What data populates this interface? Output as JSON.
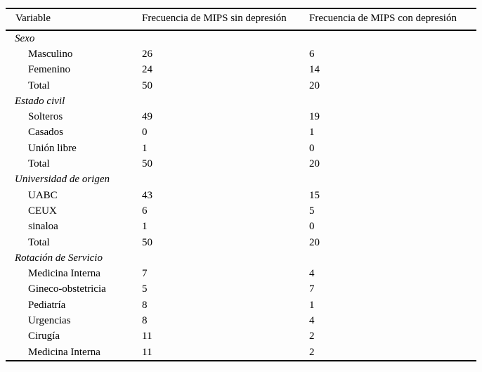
{
  "colors": {
    "background": "#fdfdfd",
    "text": "#000000",
    "rule": "#000000"
  },
  "table": {
    "columns": [
      "Variable",
      "Frecuencia de MIPS sin depresión",
      "Frecuencia de MIPS con depresión"
    ],
    "sections": [
      {
        "title": "Sexo",
        "rows": [
          {
            "label": "Masculino",
            "sin": "26",
            "con": "6"
          },
          {
            "label": "Femenino",
            "sin": "24",
            "con": "14"
          },
          {
            "label": "Total",
            "sin": "50",
            "con": "20"
          }
        ]
      },
      {
        "title": "Estado civil",
        "rows": [
          {
            "label": "Solteros",
            "sin": "49",
            "con": "19"
          },
          {
            "label": "Casados",
            "sin": "0",
            "con": "1"
          },
          {
            "label": "Unión libre",
            "sin": "1",
            "con": "0"
          },
          {
            "label": "Total",
            "sin": "50",
            "con": "20"
          }
        ]
      },
      {
        "title": "Universidad de origen",
        "rows": [
          {
            "label": "UABC",
            "sin": "43",
            "con": "15"
          },
          {
            "label": "CEUX",
            "sin": "6",
            "con": "5"
          },
          {
            "label": "Sinaloa",
            "sin": "1",
            "con": "0",
            "small_first": true
          },
          {
            "label": "Total",
            "sin": "50",
            "con": "20"
          }
        ]
      },
      {
        "title": "Rotación de Servicio",
        "rows": [
          {
            "label": "Medicina Interna",
            "sin": "7",
            "con": "4"
          },
          {
            "label": "Gineco-obstetricia",
            "sin": "5",
            "con": "7"
          },
          {
            "label": "Pediatría",
            "sin": "8",
            "con": "1"
          },
          {
            "label": "Urgencias",
            "sin": "8",
            "con": "4"
          },
          {
            "label": "Cirugía",
            "sin": "11",
            "con": "2"
          },
          {
            "label": "Medicina Interna",
            "sin": "11",
            "con": "2"
          }
        ]
      }
    ]
  }
}
